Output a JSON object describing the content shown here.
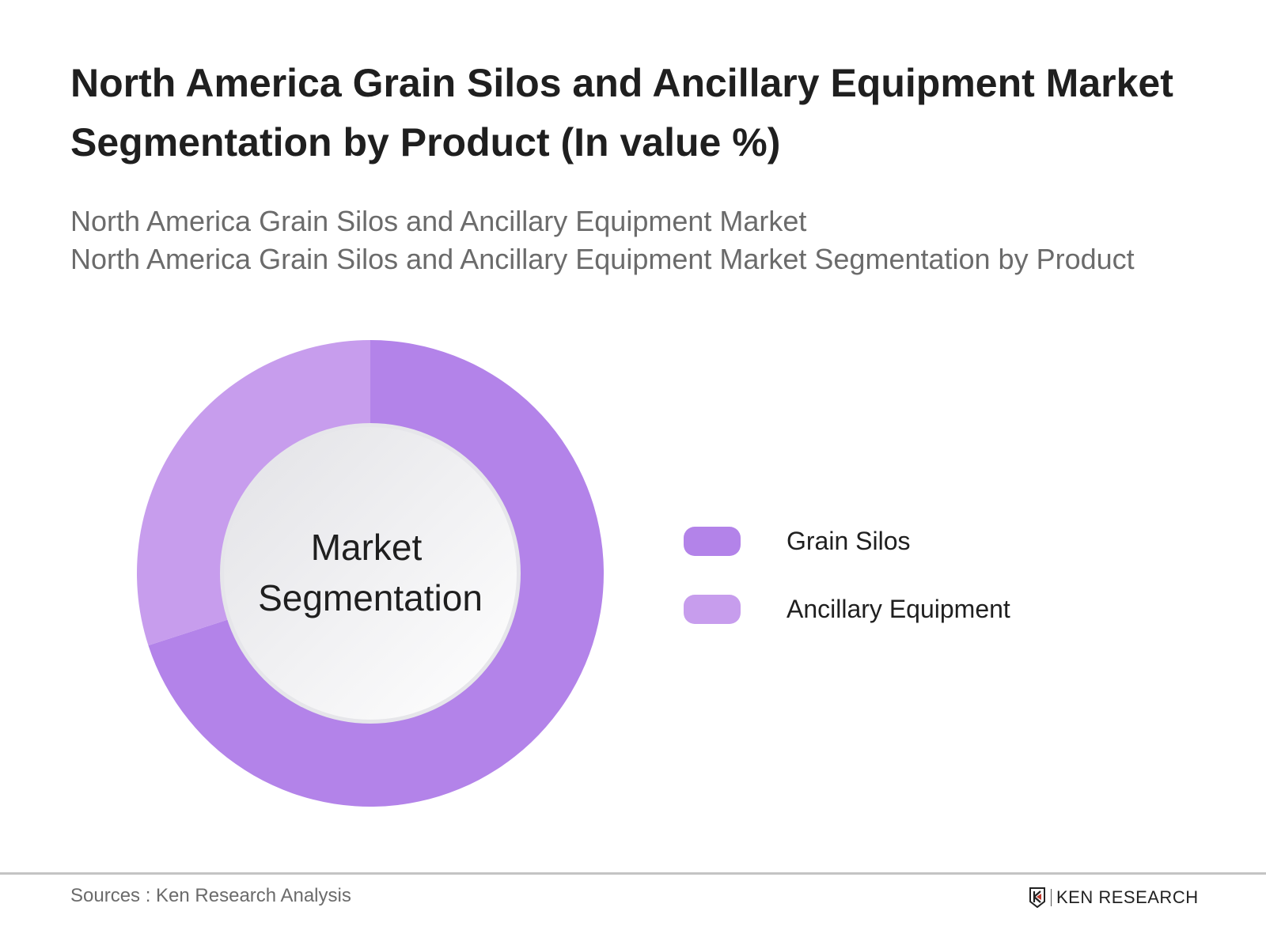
{
  "header": {
    "title_line1": "North America Grain Silos and Ancillary Equipment Market",
    "title_line2": "Segmentation by Product (In value %)",
    "subtitle_line1": "North America Grain Silos and Ancillary Equipment Market",
    "subtitle_line2": "North America Grain Silos and Ancillary Equipment Market Segmentation by Product"
  },
  "chart_data": {
    "type": "pie",
    "variant": "donut",
    "center_label_line1": "Market",
    "center_label_line2": "Segmentation",
    "categories": [
      "Grain Silos",
      "Ancillary Equipment"
    ],
    "values": [
      70,
      30
    ],
    "colors": [
      "#b383e9",
      "#c79ded"
    ],
    "legend_position": "right"
  },
  "footer": {
    "sources": "Sources : Ken Research Analysis",
    "logo_text": "KEN RESEARCH"
  }
}
